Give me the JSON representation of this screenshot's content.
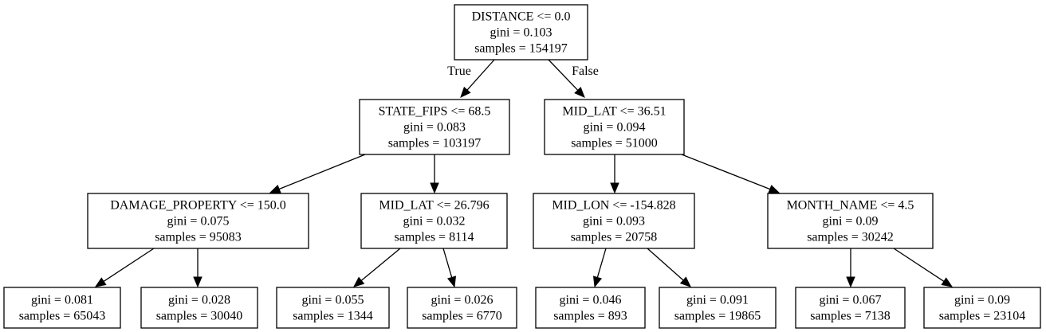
{
  "tree": {
    "nodes": [
      {
        "id": "root",
        "lines": [
          "DISTANCE <= 0.0",
          "gini = 0.103",
          "samples = 154197"
        ]
      },
      {
        "id": "n1",
        "lines": [
          "STATE_FIPS <= 68.5",
          "gini = 0.083",
          "samples = 103197"
        ]
      },
      {
        "id": "n2",
        "lines": [
          "MID_LAT <= 36.51",
          "gini = 0.094",
          "samples = 51000"
        ]
      },
      {
        "id": "n3",
        "lines": [
          "DAMAGE_PROPERTY <= 150.0",
          "gini = 0.075",
          "samples = 95083"
        ]
      },
      {
        "id": "n4",
        "lines": [
          "MID_LAT <= 26.796",
          "gini = 0.032",
          "samples = 8114"
        ]
      },
      {
        "id": "n5",
        "lines": [
          "MID_LON <= -154.828",
          "gini = 0.093",
          "samples = 20758"
        ]
      },
      {
        "id": "n6",
        "lines": [
          "MONTH_NAME <= 4.5",
          "gini = 0.09",
          "samples = 30242"
        ]
      },
      {
        "id": "l1",
        "lines": [
          "gini = 0.081",
          "samples = 65043"
        ]
      },
      {
        "id": "l2",
        "lines": [
          "gini = 0.028",
          "samples = 30040"
        ]
      },
      {
        "id": "l3",
        "lines": [
          "gini = 0.055",
          "samples = 1344"
        ]
      },
      {
        "id": "l4",
        "lines": [
          "gini = 0.026",
          "samples = 6770"
        ]
      },
      {
        "id": "l5",
        "lines": [
          "gini = 0.046",
          "samples = 893"
        ]
      },
      {
        "id": "l6",
        "lines": [
          "gini = 0.091",
          "samples = 19865"
        ]
      },
      {
        "id": "l7",
        "lines": [
          "gini = 0.067",
          "samples = 7138"
        ]
      },
      {
        "id": "l8",
        "lines": [
          "gini = 0.09",
          "samples = 23104"
        ]
      }
    ],
    "edges": [
      {
        "from": "root",
        "to": "n1",
        "label": "True"
      },
      {
        "from": "root",
        "to": "n2",
        "label": "False"
      },
      {
        "from": "n1",
        "to": "n3",
        "label": ""
      },
      {
        "from": "n1",
        "to": "n4",
        "label": ""
      },
      {
        "from": "n2",
        "to": "n5",
        "label": ""
      },
      {
        "from": "n2",
        "to": "n6",
        "label": ""
      },
      {
        "from": "n3",
        "to": "l1",
        "label": ""
      },
      {
        "from": "n3",
        "to": "l2",
        "label": ""
      },
      {
        "from": "n4",
        "to": "l3",
        "label": ""
      },
      {
        "from": "n4",
        "to": "l4",
        "label": ""
      },
      {
        "from": "n5",
        "to": "l5",
        "label": ""
      },
      {
        "from": "n5",
        "to": "l6",
        "label": ""
      },
      {
        "from": "n6",
        "to": "l7",
        "label": ""
      },
      {
        "from": "n6",
        "to": "l8",
        "label": ""
      }
    ]
  }
}
